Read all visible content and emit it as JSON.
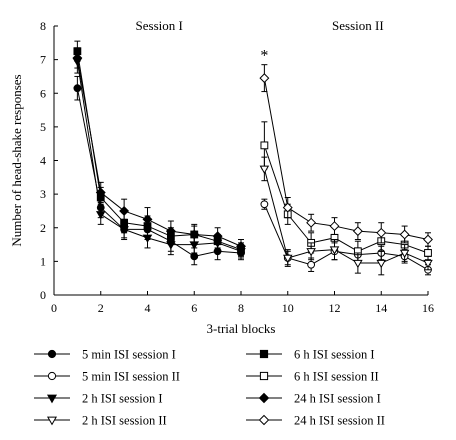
{
  "chart_data": {
    "type": "line",
    "xlabel": "3-trial blocks",
    "ylabel": "Number of head-shake responses",
    "xlim": [
      0,
      16
    ],
    "ylim": [
      0,
      8
    ],
    "xticks": [
      0,
      2,
      4,
      6,
      8,
      10,
      12,
      14,
      16
    ],
    "yticks": [
      0,
      1,
      2,
      3,
      4,
      5,
      6,
      7,
      8
    ],
    "grid": false,
    "legend_position": "bottom",
    "session_labels": [
      {
        "text": "Session I",
        "x": 4.5
      },
      {
        "text": "Session II",
        "x": 13
      }
    ],
    "annotations": [
      {
        "text": "*",
        "x": 9,
        "y": 7.1
      }
    ],
    "series": [
      {
        "name": "5 min ISI session I",
        "marker": "circle",
        "fill": "black",
        "session": 1,
        "x": [
          1,
          2,
          3,
          4,
          5,
          6,
          7,
          8
        ],
        "y": [
          6.15,
          2.6,
          1.95,
          1.95,
          1.6,
          1.15,
          1.3,
          1.25
        ],
        "err": [
          0.35,
          0.3,
          0.3,
          0.3,
          0.3,
          0.25,
          0.25,
          0.2
        ]
      },
      {
        "name": "6 h ISI session I",
        "marker": "square",
        "fill": "black",
        "session": 1,
        "x": [
          1,
          2,
          3,
          4,
          5,
          6,
          7,
          8
        ],
        "y": [
          7.25,
          2.9,
          2.15,
          2.05,
          1.75,
          1.8,
          1.6,
          1.35
        ],
        "err": [
          0.3,
          0.3,
          0.3,
          0.3,
          0.25,
          0.25,
          0.2,
          0.2
        ]
      },
      {
        "name": "2 h ISI session I",
        "marker": "triangle-down",
        "fill": "black",
        "session": 1,
        "x": [
          1,
          2,
          3,
          4,
          5,
          6,
          7,
          8
        ],
        "y": [
          6.95,
          2.4,
          1.95,
          1.7,
          1.5,
          1.5,
          1.55,
          1.3
        ],
        "err": [
          0.35,
          0.3,
          0.25,
          0.3,
          0.3,
          0.25,
          0.25,
          0.2
        ]
      },
      {
        "name": "24 h ISI session I",
        "marker": "diamond",
        "fill": "black",
        "session": 1,
        "x": [
          1,
          2,
          3,
          4,
          5,
          6,
          7,
          8
        ],
        "y": [
          7.05,
          3.05,
          2.5,
          2.25,
          1.9,
          1.8,
          1.75,
          1.45
        ],
        "err": [
          0.3,
          0.3,
          0.35,
          0.35,
          0.3,
          0.3,
          0.25,
          0.2
        ]
      },
      {
        "name": "5 min ISI session II",
        "marker": "circle",
        "fill": "white",
        "session": 2,
        "x": [
          9,
          10,
          11,
          12,
          13,
          14,
          15,
          16
        ],
        "y": [
          2.7,
          1.1,
          0.9,
          1.3,
          1.2,
          1.25,
          1.15,
          0.75
        ],
        "err": [
          0.15,
          0.2,
          0.2,
          0.25,
          0.2,
          0.2,
          0.2,
          0.15
        ]
      },
      {
        "name": "6 h ISI session II",
        "marker": "square",
        "fill": "white",
        "session": 2,
        "x": [
          9,
          10,
          11,
          12,
          13,
          14,
          15,
          16
        ],
        "y": [
          4.45,
          2.4,
          1.55,
          1.7,
          1.3,
          1.6,
          1.5,
          1.25
        ],
        "err": [
          0.7,
          0.3,
          0.3,
          0.3,
          0.3,
          0.3,
          0.25,
          0.2
        ]
      },
      {
        "name": "2 h ISI session II",
        "marker": "triangle-down",
        "fill": "white",
        "session": 2,
        "x": [
          9,
          10,
          11,
          12,
          13,
          14,
          15,
          16
        ],
        "y": [
          3.75,
          1.1,
          1.3,
          1.35,
          0.95,
          0.95,
          1.25,
          0.95
        ],
        "err": [
          0.35,
          0.25,
          0.25,
          0.3,
          0.3,
          0.35,
          0.25,
          0.2
        ]
      },
      {
        "name": "24 h ISI session II",
        "marker": "diamond",
        "fill": "white",
        "session": 2,
        "x": [
          9,
          10,
          11,
          12,
          13,
          14,
          15,
          16
        ],
        "y": [
          6.45,
          2.6,
          2.15,
          2.05,
          1.9,
          1.85,
          1.8,
          1.65
        ],
        "err": [
          0.4,
          0.3,
          0.25,
          0.25,
          0.25,
          0.3,
          0.25,
          0.2
        ]
      }
    ],
    "legend_order": [
      [
        "5 min ISI session I",
        "6 h ISI session I"
      ],
      [
        "5 min ISI session II",
        "6 h ISI session II"
      ],
      [
        "2 h ISI session I",
        "24 h ISI session I"
      ],
      [
        "2 h ISI session II",
        "24 h ISI session II"
      ]
    ]
  }
}
